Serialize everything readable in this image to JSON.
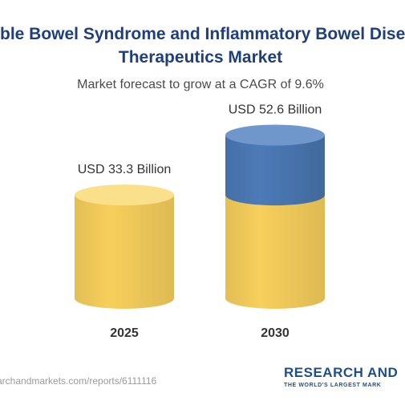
{
  "header": {
    "title_line1": "ble Bowel Syndrome and Inflammatory Bowel Dise",
    "title_line2": "Therapeutics Market",
    "subtitle": "Market forecast to grow at a CAGR of 9.6%"
  },
  "chart_data": {
    "type": "bar",
    "categories": [
      "2025",
      "2030"
    ],
    "values": [
      33.3,
      52.6
    ],
    "data_labels": [
      "USD 33.3 Billion",
      "USD 52.6 Billion"
    ],
    "segments": [
      {
        "category": "2025",
        "base": 33.3,
        "increment": 0
      },
      {
        "category": "2030",
        "base": 33.3,
        "increment": 19.3
      }
    ],
    "colors": {
      "base": "#f7cf5c",
      "base_top": "#fbe08c",
      "increment": "#4d7bb8",
      "increment_top": "#6f97cc"
    },
    "style": "3d-cylinder",
    "grid": false,
    "legend": "none"
  },
  "footer": {
    "url": "archandmarkets.com/reports/6111116",
    "brand_name": "RESEARCH AND",
    "brand_tagline": "THE WORLD'S LARGEST MARK"
  }
}
